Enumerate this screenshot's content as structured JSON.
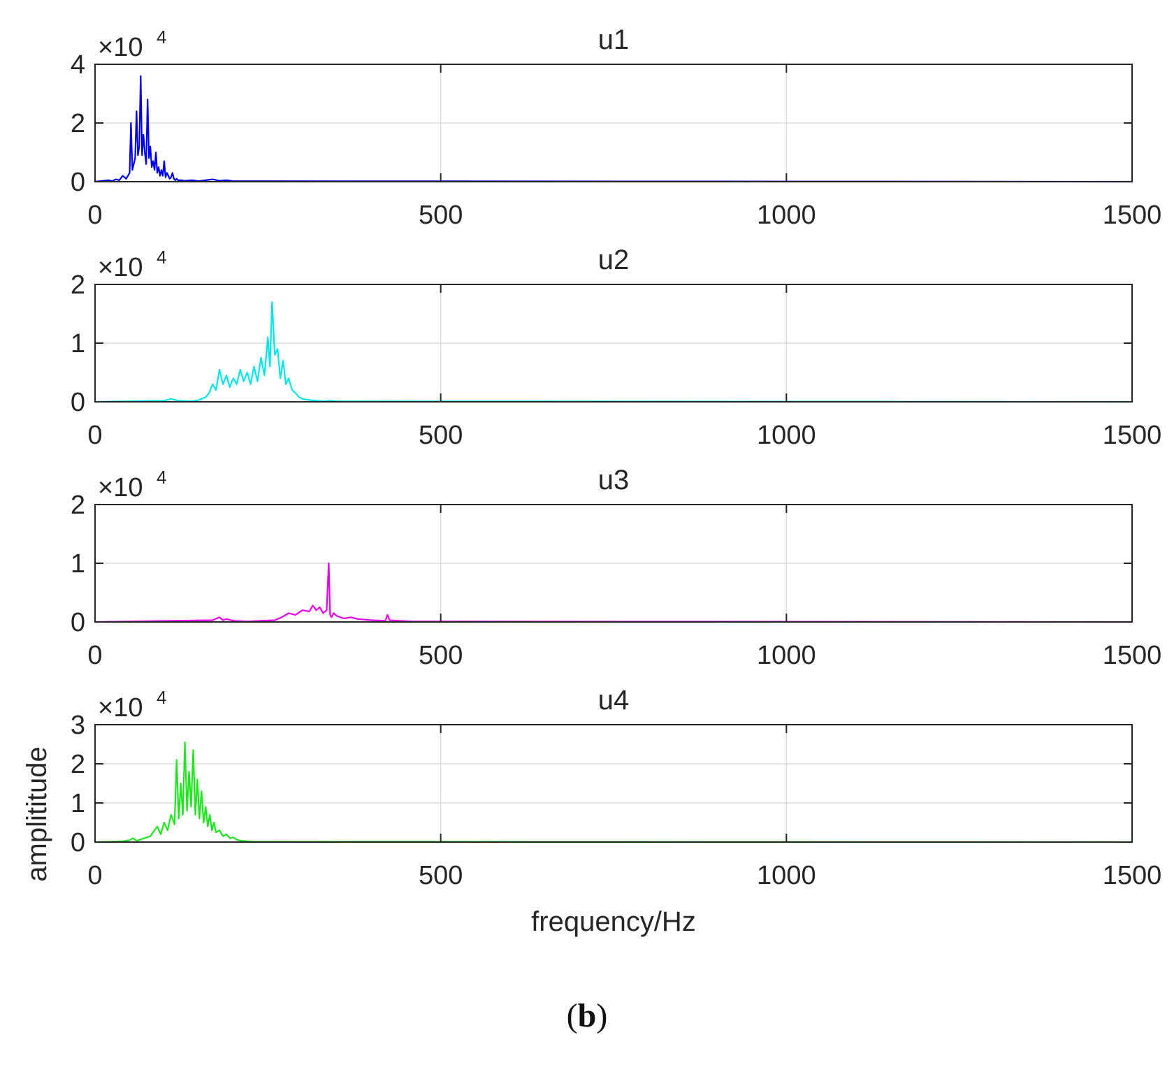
{
  "figure": {
    "panel_label_open": "(",
    "panel_label_letter": "b",
    "panel_label_close": ")",
    "shared_ylabel": "amplititude",
    "shared_xlabel": "frequency/Hz"
  },
  "chart_data": [
    {
      "type": "line",
      "title": "u1",
      "color": "#0000e6",
      "xlim": [
        0,
        1500
      ],
      "ylim": [
        0,
        4
      ],
      "y_scale_label": "×10",
      "y_scale_exp": "4",
      "xticks": [
        "0",
        "500",
        "1000",
        "1500"
      ],
      "yticks": [
        "0",
        "2",
        "4"
      ],
      "grid": true,
      "series": [
        {
          "name": "u1",
          "x": [
            0,
            20,
            25,
            30,
            35,
            40,
            45,
            50,
            52,
            54,
            56,
            58,
            60,
            62,
            64,
            66,
            68,
            70,
            72,
            74,
            76,
            78,
            80,
            82,
            84,
            86,
            88,
            90,
            92,
            94,
            96,
            98,
            100,
            102,
            104,
            106,
            108,
            110,
            112,
            114,
            116,
            118,
            120,
            125,
            130,
            140,
            150,
            160,
            170,
            180,
            190,
            200,
            1500
          ],
          "y": [
            0,
            0.05,
            0.02,
            0.08,
            0.05,
            0.2,
            0.1,
            0.3,
            2.0,
            0.4,
            0.6,
            0.8,
            2.4,
            0.9,
            1.2,
            3.6,
            0.9,
            1.6,
            1.0,
            0.6,
            2.8,
            0.8,
            1.2,
            0.5,
            0.7,
            0.4,
            1.0,
            0.3,
            0.5,
            0.2,
            0.4,
            0.2,
            0.7,
            0.15,
            0.3,
            0.2,
            0.1,
            0.15,
            0.3,
            0.1,
            0.05,
            0.1,
            0.05,
            0.05,
            0.03,
            0.05,
            0.02,
            0.05,
            0.08,
            0.03,
            0.05,
            0.02,
            0
          ]
        }
      ]
    },
    {
      "type": "line",
      "title": "u2",
      "color": "#00e6e6",
      "xlim": [
        0,
        1500
      ],
      "ylim": [
        0,
        2
      ],
      "y_scale_label": "×10",
      "y_scale_exp": "4",
      "xticks": [
        "0",
        "500",
        "1000",
        "1500"
      ],
      "yticks": [
        "0",
        "1",
        "2"
      ],
      "grid": true,
      "series": [
        {
          "name": "u2",
          "x": [
            0,
            100,
            110,
            120,
            140,
            150,
            160,
            165,
            170,
            175,
            180,
            185,
            190,
            195,
            200,
            205,
            210,
            215,
            220,
            225,
            230,
            235,
            240,
            245,
            250,
            253,
            256,
            260,
            264,
            268,
            272,
            276,
            280,
            285,
            290,
            295,
            300,
            310,
            320,
            330,
            340,
            350,
            1500
          ],
          "y": [
            0,
            0.02,
            0.05,
            0.02,
            0.01,
            0.03,
            0.08,
            0.15,
            0.3,
            0.2,
            0.55,
            0.3,
            0.45,
            0.25,
            0.4,
            0.3,
            0.55,
            0.35,
            0.5,
            0.3,
            0.6,
            0.35,
            0.75,
            0.45,
            1.1,
            0.6,
            1.7,
            0.8,
            0.9,
            0.4,
            0.7,
            0.3,
            0.4,
            0.2,
            0.15,
            0.08,
            0.05,
            0.03,
            0.02,
            0.01,
            0.02,
            0.01,
            0
          ]
        }
      ]
    },
    {
      "type": "line",
      "title": "u3",
      "color": "#e600e6",
      "xlim": [
        0,
        1500
      ],
      "ylim": [
        0,
        2
      ],
      "y_scale_label": "×10",
      "y_scale_exp": "4",
      "xticks": [
        "0",
        "500",
        "1000",
        "1500"
      ],
      "yticks": [
        "0",
        "1",
        "2"
      ],
      "grid": true,
      "series": [
        {
          "name": "u3",
          "x": [
            0,
            170,
            180,
            185,
            190,
            200,
            220,
            240,
            260,
            270,
            280,
            290,
            300,
            310,
            315,
            320,
            325,
            330,
            335,
            338,
            340,
            342,
            345,
            350,
            360,
            370,
            380,
            400,
            420,
            423,
            426,
            440,
            460,
            1500
          ],
          "y": [
            0,
            0.03,
            0.08,
            0.03,
            0.05,
            0.02,
            0.01,
            0.02,
            0.03,
            0.08,
            0.15,
            0.12,
            0.2,
            0.18,
            0.28,
            0.2,
            0.25,
            0.15,
            0.2,
            1.0,
            0.12,
            0.08,
            0.15,
            0.1,
            0.06,
            0.08,
            0.05,
            0.03,
            0.02,
            0.12,
            0.03,
            0.02,
            0.01,
            0
          ]
        }
      ]
    },
    {
      "type": "line",
      "title": "u4",
      "color": "#1fe61f",
      "xlim": [
        0,
        1500
      ],
      "ylim": [
        0,
        3
      ],
      "y_scale_label": "×10",
      "y_scale_exp": "4",
      "xticks": [
        "0",
        "500",
        "1000",
        "1500"
      ],
      "yticks": [
        "0",
        "1",
        "2",
        "3"
      ],
      "grid": true,
      "series": [
        {
          "name": "u4",
          "x": [
            0,
            40,
            50,
            55,
            60,
            80,
            90,
            95,
            100,
            105,
            110,
            115,
            118,
            121,
            124,
            127,
            130,
            133,
            136,
            139,
            142,
            145,
            148,
            151,
            154,
            157,
            160,
            163,
            166,
            169,
            172,
            175,
            180,
            185,
            190,
            195,
            200,
            205,
            210,
            220,
            230,
            1500
          ],
          "y": [
            0,
            0.02,
            0.05,
            0.1,
            0.03,
            0.15,
            0.4,
            0.2,
            0.5,
            0.3,
            0.7,
            0.45,
            2.1,
            0.6,
            1.5,
            0.7,
            2.55,
            0.8,
            1.8,
            0.9,
            2.35,
            0.7,
            1.6,
            0.6,
            1.3,
            0.5,
            0.9,
            0.4,
            0.7,
            0.3,
            0.5,
            0.25,
            0.3,
            0.15,
            0.2,
            0.1,
            0.12,
            0.06,
            0.04,
            0.02,
            0.01,
            0
          ]
        }
      ]
    }
  ]
}
